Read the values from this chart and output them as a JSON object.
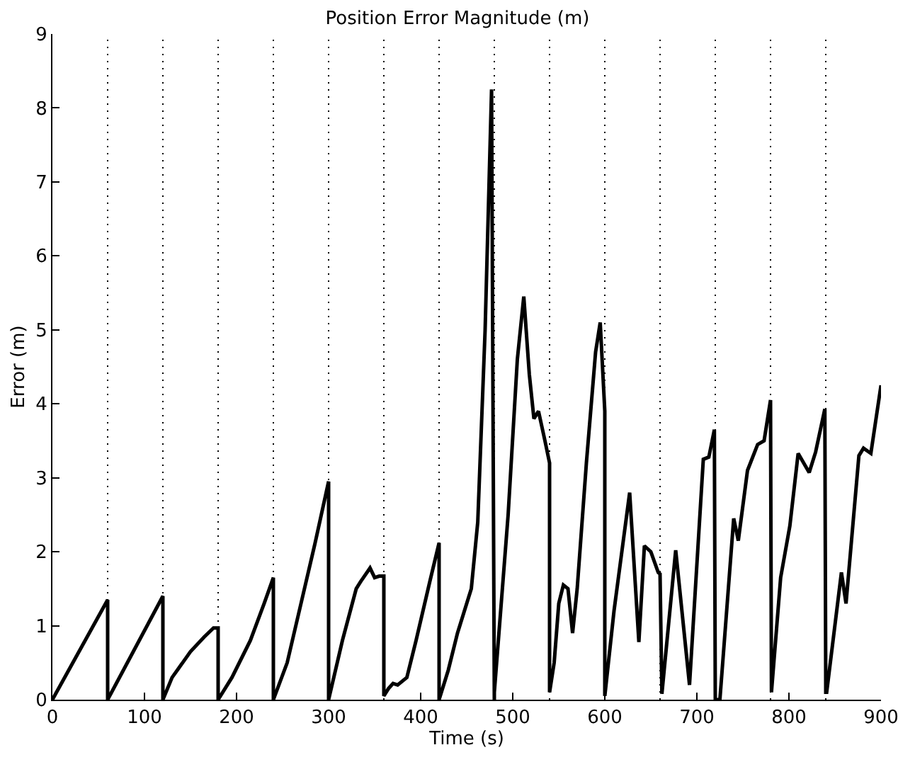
{
  "chart_data": {
    "type": "line",
    "title": "Position Error Magnitude (m)",
    "xlabel": "Time (s)",
    "ylabel": "Error (m)",
    "xlim": [
      0,
      900
    ],
    "xticks": [
      0,
      100,
      200,
      300,
      400,
      500,
      600,
      700,
      800,
      900
    ],
    "ylim": [
      0,
      9
    ],
    "yticks": [
      0,
      1,
      2,
      3,
      4,
      5,
      6,
      7,
      8,
      9
    ],
    "grid": false,
    "line_style": "solid",
    "marker": "none",
    "series": [
      {
        "color": "#000000",
        "x": [
          0,
          60,
          60,
          120,
          120,
          130,
          150,
          165,
          175,
          180,
          180,
          195,
          215,
          230,
          240,
          240,
          255,
          270,
          285,
          300,
          300,
          315,
          330,
          335,
          345,
          350,
          355,
          360,
          360,
          365,
          370,
          375,
          385,
          395,
          410,
          420,
          420,
          430,
          440,
          455,
          462,
          470,
          477,
          480,
          480,
          495,
          505,
          512,
          518,
          523,
          528,
          535,
          540,
          540,
          545,
          550,
          555,
          560,
          565,
          570,
          580,
          590,
          595,
          600,
          600,
          610,
          627,
          637,
          643,
          650,
          658,
          660,
          662,
          677,
          692,
          707,
          713,
          719,
          720,
          725,
          740,
          745,
          755,
          766,
          773,
          780,
          781,
          791,
          801,
          810,
          822,
          829,
          839,
          840,
          841,
          857,
          862,
          876,
          881,
          889,
          900
        ],
        "values": [
          0,
          1.35,
          0,
          1.4,
          0,
          0.3,
          0.65,
          0.85,
          0.97,
          0.97,
          0,
          0.3,
          0.8,
          1.3,
          1.65,
          0,
          0.5,
          1.3,
          2.1,
          2.95,
          0,
          0.8,
          1.5,
          1.6,
          1.78,
          1.65,
          1.67,
          1.67,
          0.05,
          0.15,
          0.22,
          0.2,
          0.3,
          0.8,
          1.6,
          2.12,
          0,
          0.4,
          0.9,
          1.5,
          2.4,
          5,
          8.25,
          0,
          0.1,
          2.5,
          4.6,
          5.45,
          4.4,
          3.8,
          3.9,
          3.5,
          3.2,
          0.1,
          0.5,
          1.3,
          1.55,
          1.5,
          0.9,
          1.5,
          3.2,
          4.7,
          5.1,
          3.9,
          0.05,
          1.2,
          2.8,
          0.78,
          2.08,
          2.0,
          1.72,
          1.7,
          0.08,
          2.02,
          0.2,
          3.25,
          3.28,
          3.65,
          0,
          0,
          2.45,
          2.15,
          3.1,
          3.45,
          3.5,
          4.05,
          0.1,
          1.65,
          2.35,
          3.33,
          3.07,
          3.35,
          3.93,
          0.1,
          0.1,
          1.72,
          1.3,
          3.3,
          3.4,
          3.33,
          4.25
        ]
      }
    ],
    "ref_lines": [
      {
        "axis": "x",
        "value": 60,
        "color": "#000000",
        "line_style": "dotted"
      },
      {
        "axis": "x",
        "value": 120,
        "color": "#000000",
        "line_style": "dotted"
      },
      {
        "axis": "x",
        "value": 180,
        "color": "#000000",
        "line_style": "dotted"
      },
      {
        "axis": "x",
        "value": 240,
        "color": "#000000",
        "line_style": "dotted"
      },
      {
        "axis": "x",
        "value": 300,
        "color": "#000000",
        "line_style": "dotted"
      },
      {
        "axis": "x",
        "value": 360,
        "color": "#000000",
        "line_style": "dotted"
      },
      {
        "axis": "x",
        "value": 420,
        "color": "#000000",
        "line_style": "dotted"
      },
      {
        "axis": "x",
        "value": 480,
        "color": "#000000",
        "line_style": "dotted"
      },
      {
        "axis": "x",
        "value": 540,
        "color": "#000000",
        "line_style": "dotted"
      },
      {
        "axis": "x",
        "value": 600,
        "color": "#000000",
        "line_style": "dotted"
      },
      {
        "axis": "x",
        "value": 660,
        "color": "#000000",
        "line_style": "dotted"
      },
      {
        "axis": "x",
        "value": 720,
        "color": "#000000",
        "line_style": "dotted"
      },
      {
        "axis": "x",
        "value": 780,
        "color": "#000000",
        "line_style": "dotted"
      },
      {
        "axis": "x",
        "value": 840,
        "color": "#000000",
        "line_style": "dotted"
      }
    ]
  }
}
